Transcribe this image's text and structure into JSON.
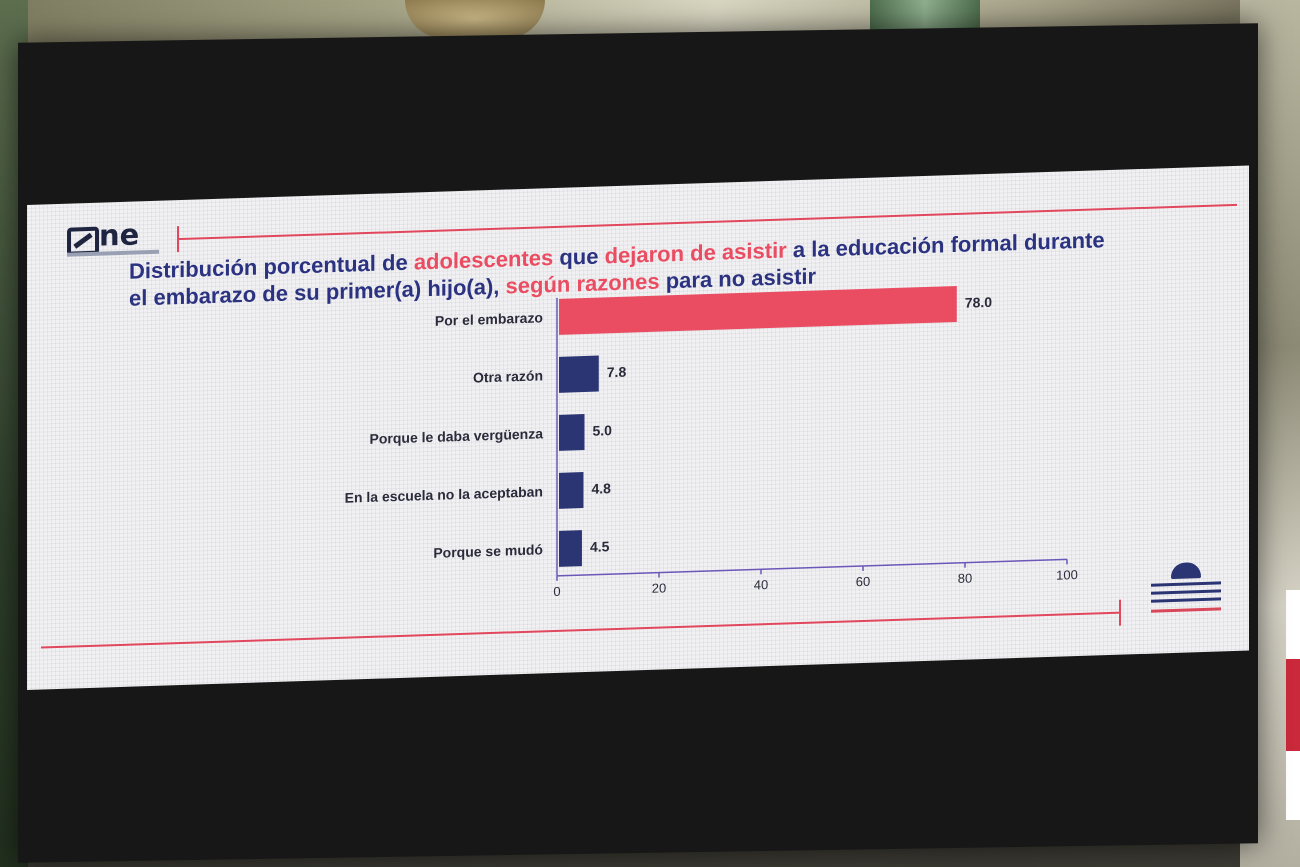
{
  "logo": {
    "text": "ne"
  },
  "title": {
    "parts": [
      {
        "text": "Distribución porcentual de ",
        "highlight": false
      },
      {
        "text": "adolescentes",
        "highlight": true
      },
      {
        "text": " que ",
        "highlight": false
      },
      {
        "text": "dejaron de asistir",
        "highlight": true
      },
      {
        "text": " a la educación formal durante el embarazo de su primer(a) hijo(a), ",
        "highlight": false
      },
      {
        "text": "según razones",
        "highlight": true
      },
      {
        "text": " para no asistir",
        "highlight": false
      }
    ]
  },
  "colors": {
    "title": "#2b3280",
    "highlight": "#ea4c61",
    "bar_primary": "#ea4c61",
    "bar_secondary": "#2b3574",
    "axis": "#6c58b8"
  },
  "chart_data": {
    "type": "bar",
    "orientation": "horizontal",
    "categories": [
      "Por el embarazo",
      "Otra razón",
      "Porque le daba vergüenza",
      "En la escuela no la aceptaban",
      "Porque se mudó"
    ],
    "values": [
      78.0,
      7.8,
      5.0,
      4.8,
      4.5
    ],
    "value_labels": [
      "78.0",
      "7.8",
      "5.0",
      "4.8",
      "4.5"
    ],
    "xlim": [
      0,
      100
    ],
    "xticks": [
      0,
      20,
      40,
      60,
      80,
      100
    ],
    "grid": false,
    "legend": "none"
  }
}
